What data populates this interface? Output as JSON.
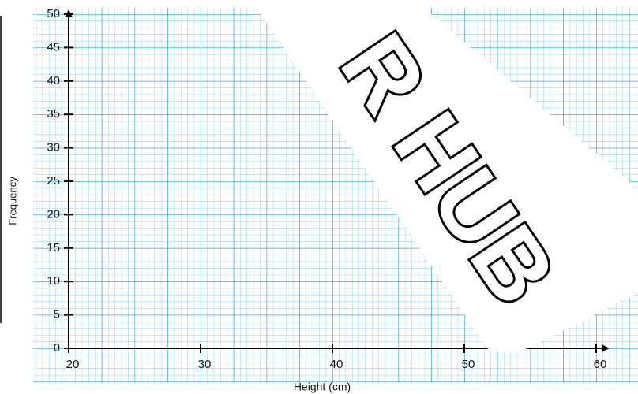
{
  "chart_data": {
    "type": "blank",
    "y_label": "Frequency",
    "x_label": "Height  (cm)",
    "xlim": [
      20,
      60
    ],
    "xticks": [
      20,
      30,
      40,
      50,
      60
    ],
    "ylim": [
      0,
      50
    ],
    "yticks": [
      0,
      5,
      10,
      15,
      20,
      25,
      30,
      35,
      40,
      45,
      50
    ],
    "grid": true,
    "watermark": "R HUB"
  }
}
